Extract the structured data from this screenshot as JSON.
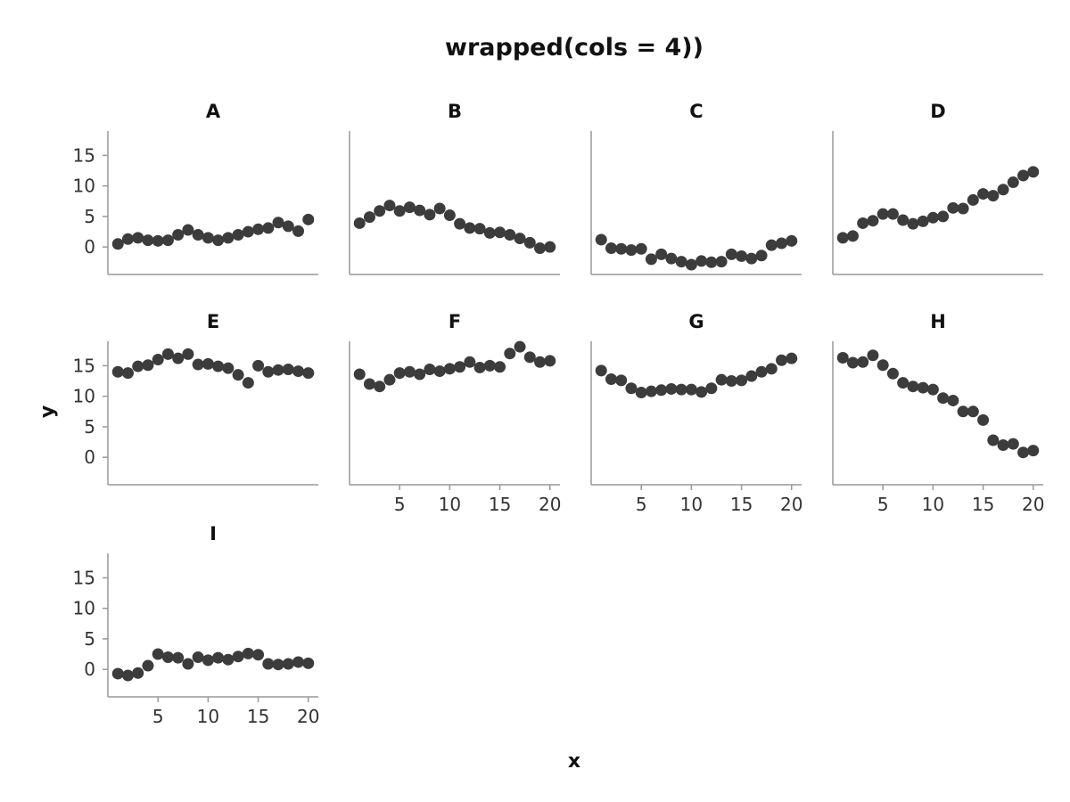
{
  "chart_data": {
    "type": "scatter",
    "title": "wrapped(cols = 4))",
    "xlabel": "x",
    "ylabel": "y",
    "xlim": [
      0,
      21
    ],
    "ylim": [
      -4.5,
      19
    ],
    "x_ticks": [
      5,
      10,
      15,
      20
    ],
    "y_ticks": [
      0,
      5,
      10,
      15
    ],
    "grid": false,
    "cols": 4,
    "x": [
      1,
      2,
      3,
      4,
      5,
      6,
      7,
      8,
      9,
      10,
      11,
      12,
      13,
      14,
      15,
      16,
      17,
      18,
      19,
      20
    ],
    "facets": [
      {
        "name": "A",
        "y": [
          0.5,
          1.3,
          1.5,
          1.1,
          1.0,
          1.1,
          2.0,
          2.8,
          2.0,
          1.5,
          1.1,
          1.5,
          2.0,
          2.5,
          2.9,
          3.1,
          4.0,
          3.4,
          2.6,
          4.5
        ]
      },
      {
        "name": "B",
        "y": [
          3.9,
          4.9,
          5.9,
          6.8,
          5.9,
          6.5,
          6.0,
          5.3,
          6.3,
          5.2,
          3.8,
          3.1,
          3.0,
          2.3,
          2.4,
          2.0,
          1.4,
          0.7,
          -0.2,
          0.0
        ]
      },
      {
        "name": "C",
        "y": [
          1.2,
          -0.2,
          -0.3,
          -0.5,
          -0.3,
          -2.0,
          -1.2,
          -1.9,
          -2.4,
          -2.9,
          -2.3,
          -2.5,
          -2.4,
          -1.2,
          -1.5,
          -1.9,
          -1.4,
          0.3,
          0.6,
          1.0
        ]
      },
      {
        "name": "D",
        "y": [
          1.5,
          1.8,
          3.9,
          4.3,
          5.4,
          5.4,
          4.4,
          3.8,
          4.2,
          4.8,
          5.0,
          6.4,
          6.3,
          7.7,
          8.7,
          8.4,
          9.4,
          10.6,
          11.7,
          12.3
        ]
      },
      {
        "name": "E",
        "y": [
          14.0,
          13.8,
          14.9,
          15.1,
          16.0,
          16.9,
          16.2,
          16.9,
          15.2,
          15.3,
          14.9,
          14.6,
          13.5,
          12.2,
          15.0,
          14.0,
          14.3,
          14.4,
          14.1,
          13.8
        ]
      },
      {
        "name": "F",
        "y": [
          13.6,
          12.0,
          11.6,
          12.7,
          13.8,
          14.0,
          13.6,
          14.4,
          14.1,
          14.5,
          14.8,
          15.6,
          14.7,
          15.0,
          14.8,
          17.0,
          18.1,
          16.4,
          15.6,
          15.8
        ]
      },
      {
        "name": "G",
        "y": [
          14.2,
          12.8,
          12.6,
          11.3,
          10.6,
          10.8,
          11.0,
          11.2,
          11.1,
          11.1,
          10.7,
          11.3,
          12.7,
          12.5,
          12.6,
          13.3,
          14.0,
          14.5,
          15.9,
          16.2
        ]
      },
      {
        "name": "H",
        "y": [
          16.3,
          15.5,
          15.6,
          16.7,
          15.1,
          13.7,
          12.2,
          11.6,
          11.4,
          11.1,
          9.7,
          9.3,
          7.5,
          7.5,
          6.1,
          2.8,
          2.0,
          2.2,
          0.8,
          1.1
        ]
      },
      {
        "name": "I",
        "y": [
          -0.7,
          -1.0,
          -0.6,
          0.6,
          2.5,
          2.0,
          1.9,
          0.9,
          2.0,
          1.5,
          1.9,
          1.6,
          2.1,
          2.6,
          2.4,
          0.9,
          0.8,
          0.9,
          1.2,
          1.0
        ]
      }
    ]
  }
}
